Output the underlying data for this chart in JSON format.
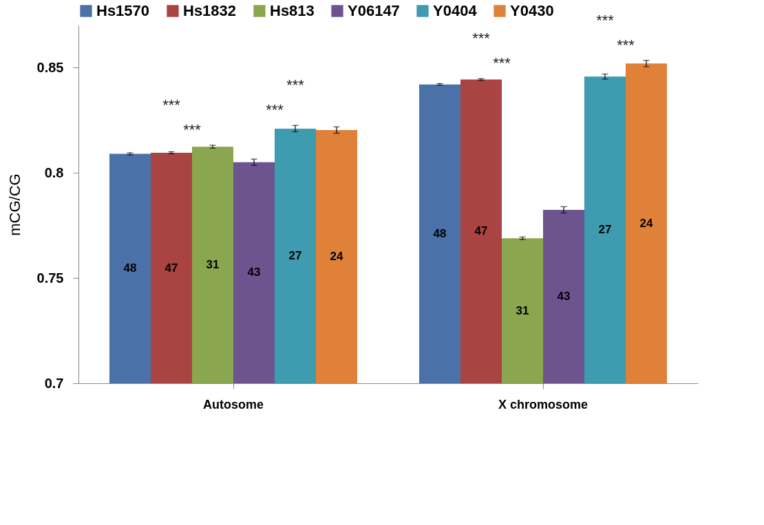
{
  "chart_data": {
    "type": "bar",
    "ylabel": "mCG/CG",
    "categories": [
      "Autosome",
      "X chromosome"
    ],
    "ylim": [
      0.7,
      0.87
    ],
    "yticks": [
      0.7,
      0.75,
      0.8,
      0.85
    ],
    "grid": false,
    "legend": "top",
    "series": [
      {
        "name": "Hs1570",
        "color": "#4a72a8",
        "values": [
          0.809,
          0.842
        ],
        "errors": [
          0.0005,
          0.0004
        ]
      },
      {
        "name": "Hs1832",
        "color": "#a94442",
        "values": [
          0.8095,
          0.8443
        ],
        "errors": [
          0.0005,
          0.0004
        ]
      },
      {
        "name": "Hs813",
        "color": "#8aa64e",
        "values": [
          0.8124,
          0.7689
        ],
        "errors": [
          0.0007,
          0.0006
        ]
      },
      {
        "name": "Y06147",
        "color": "#6e548f",
        "values": [
          0.805,
          0.7824
        ],
        "errors": [
          0.0015,
          0.0015
        ]
      },
      {
        "name": "Y0404",
        "color": "#3e9bb0",
        "values": [
          0.821,
          0.8457
        ],
        "errors": [
          0.0015,
          0.0012
        ]
      },
      {
        "name": "Y0430",
        "color": "#df8139",
        "values": [
          0.8203,
          0.8519
        ],
        "errors": [
          0.0015,
          0.0015
        ]
      }
    ],
    "annotations": [
      "48",
      "48",
      "47",
      "47",
      "31",
      "31",
      "43",
      "43",
      "27",
      "27",
      "24",
      "24",
      "***",
      "***",
      "***",
      "***",
      "***",
      "***",
      "***",
      "***"
    ]
  }
}
